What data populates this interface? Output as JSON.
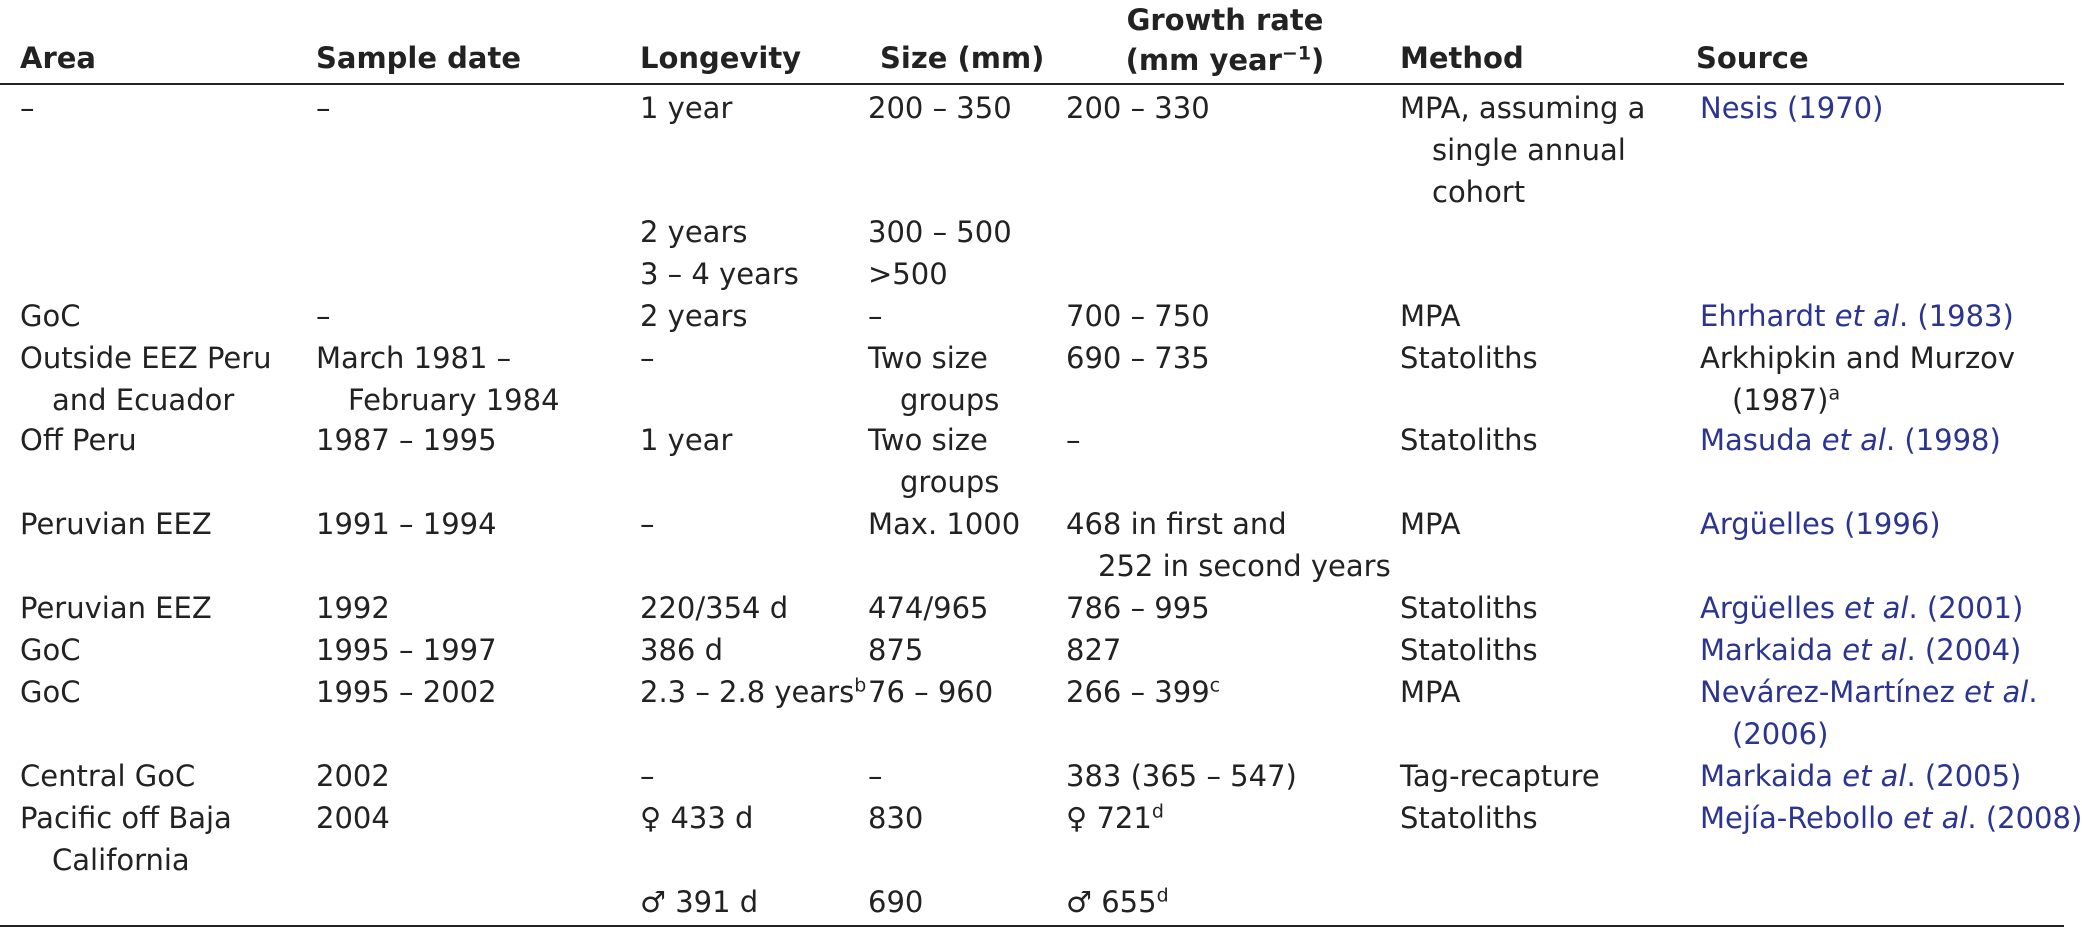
{
  "headers": {
    "area": "Area",
    "sample_date": "Sample date",
    "longevity": "Longevity",
    "size": "Size (mm)",
    "growth_line1": "Growth rate",
    "growth_line2_pre": "(mm year",
    "growth_sup": "−1",
    "growth_line2_post": ")",
    "method": "Method",
    "source": "Source"
  },
  "rows": [
    {
      "area": "–",
      "date": "–",
      "longevity": "1 year",
      "size": "200 – 350",
      "growth": "200 – 330",
      "method_1": "MPA, assuming a",
      "method_2": "single annual",
      "method_3": "cohort",
      "source": "Nesis (1970)"
    },
    {
      "longevity_1": "2 years",
      "size_1": "300 – 500",
      "longevity_2": "3 – 4 years",
      "size_2": ">500"
    },
    {
      "area": "GoC",
      "date": "–",
      "longevity": "2 years",
      "size": "–",
      "growth": "700 – 750",
      "method": "MPA",
      "source_pre": "Ehrhardt ",
      "source_em": "et al",
      "source_post": ". (1983)"
    },
    {
      "area_1": "Outside EEZ Peru",
      "area_2": "and Ecuador",
      "date_1": "March 1981 –",
      "date_2": "February 1984",
      "longevity": "–",
      "size_1": "Two size",
      "size_2": "groups",
      "growth": "690 – 735",
      "method": "Statoliths",
      "source_1": "Arkhipkin and Murzov",
      "source_2": "(1987)",
      "source_sup": "a"
    },
    {
      "area": "Off Peru",
      "date": "1987 – 1995",
      "longevity": "1 year",
      "size_1": "Two size",
      "size_2": "groups",
      "growth": "–",
      "method": "Statoliths",
      "source_pre": "Masuda ",
      "source_em": "et al",
      "source_post": ". (1998)"
    },
    {
      "area": "Peruvian EEZ",
      "date": "1991 – 1994",
      "longevity": "–",
      "size": "Max. 1000",
      "growth_1": "468 in first and",
      "growth_2": "252 in second years",
      "method": "MPA",
      "source": "Argüelles (1996)"
    },
    {
      "area": "Peruvian EEZ",
      "date": "1992",
      "longevity": "220/354 d",
      "size": "474/965",
      "growth": "786 – 995",
      "method": "Statoliths",
      "source_pre": "Argüelles ",
      "source_em": "et al",
      "source_post": ". (2001)"
    },
    {
      "area": "GoC",
      "date": "1995 – 1997",
      "longevity": "386 d",
      "size": "875",
      "growth": "827",
      "method": "Statoliths",
      "source_pre": "Markaida ",
      "source_em": "et al",
      "source_post": ". (2004)"
    },
    {
      "area": "GoC",
      "date": "1995 – 2002",
      "longevity": "2.3 – 2.8 years",
      "longevity_sup": "b",
      "size": "76 – 960",
      "growth": "266 – 399",
      "growth_sup": "c",
      "method": "MPA",
      "source_pre": "Nevárez-Martínez ",
      "source_em": "et al",
      "source_post": ".",
      "source_2": "(2006)"
    },
    {
      "area": "Central GoC",
      "date": "2002",
      "longevity": "–",
      "size": "–",
      "growth": "383 (365 – 547)",
      "method": "Tag-recapture",
      "source_pre": "Markaida ",
      "source_em": "et al",
      "source_post": ". (2005)"
    },
    {
      "area_1": "Pacific off Baja",
      "area_2": "California",
      "date": "2004",
      "female_symbol": "♀",
      "longevity": "433 d",
      "size": "830",
      "growth": "721",
      "growth_sup": "d",
      "method": "Statoliths",
      "source_pre": "Mejía-Rebollo ",
      "source_em": "et al",
      "source_post": ". (2008)"
    },
    {
      "male_symbol": "♂",
      "longevity": "391 d",
      "size": "690",
      "growth": "655",
      "growth_sup": "d"
    }
  ],
  "colors": {
    "text": "#222222",
    "link": "#2b3490"
  }
}
